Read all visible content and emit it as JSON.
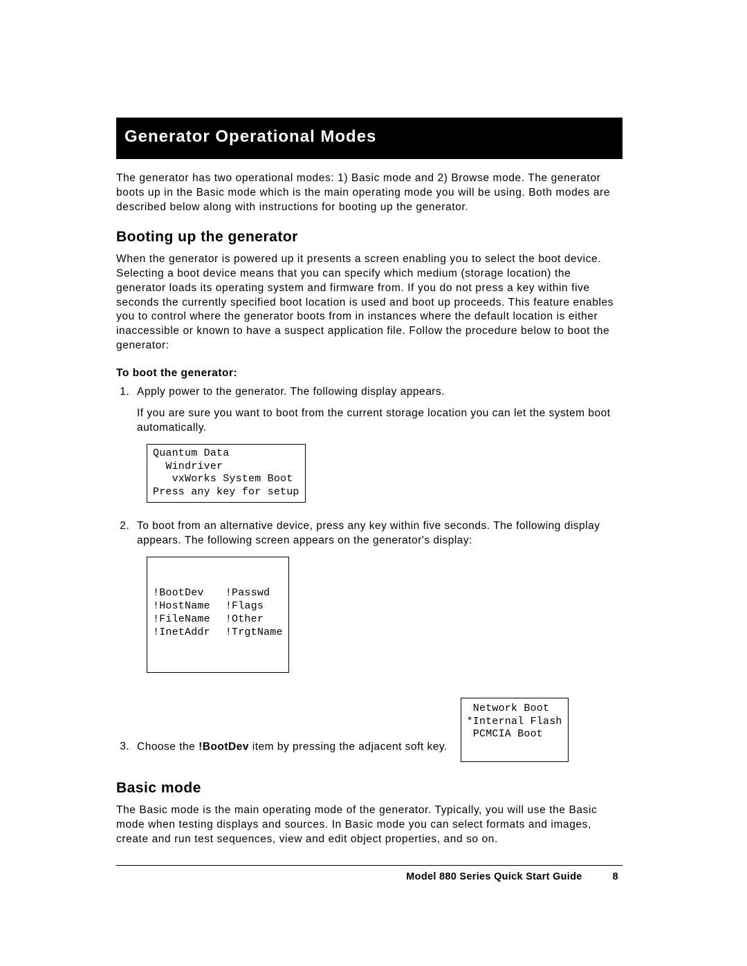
{
  "title": "Generator Operational Modes",
  "intro": "The generator has two operational modes: 1) Basic mode and 2) Browse mode. The generator boots up in the Basic mode which is the main operating mode you will be using. Both modes are described below along with instructions for booting up the generator.",
  "section_boot": {
    "heading": "Booting up the generator",
    "para": "When the generator is powered up it presents a screen enabling you to select the boot device. Selecting a boot device means that you can specify which medium (storage location) the generator loads its operating system and firmware from. If you do not press a key within five seconds the currently specified boot location is used and boot up proceeds. This feature enables you to control where the generator boots from in instances where the default location is either inaccessible or known to have a suspect application file. Follow the procedure below to boot the generator:",
    "sub_heading": "To boot the generator:",
    "steps": {
      "s1a": "Apply power to the generator. The following display appears.",
      "s1b": "If you are sure you want to boot from the current storage location you can let the system boot automatically.",
      "screen1": "Quantum Data\n  Windriver\n   vxWorks System Boot\nPress any key for setup",
      "s2": "To boot from an alternative device, press any key within five seconds. The following display appears. The following screen appears on the generator's display:",
      "screen2_left": [
        "!BootDev",
        "!HostName",
        "!FileName",
        "!InetAddr"
      ],
      "screen2_right": [
        "!Passwd",
        "!Flags",
        "!Other",
        "!TrgtName"
      ],
      "s3_pre": "Choose the ",
      "s3_bold": "!BootDev",
      "s3_post": " item by pressing the adjacent soft key.",
      "screen3": " Network Boot\n*Internal Flash\n PCMCIA Boot\n "
    }
  },
  "section_basic": {
    "heading": "Basic mode",
    "para": "The Basic mode is the main operating mode of the generator. Typically, you will use the Basic mode when testing displays and sources. In Basic mode you can select formats and images, create and run test sequences, view and edit object properties, and so on."
  },
  "footer": {
    "doc": "Model 880 Series Quick Start Guide",
    "page": "8"
  },
  "colors": {
    "page_bg": "#ffffff",
    "text": "#000000",
    "title_bg": "#000000",
    "title_fg": "#ffffff",
    "rule": "#000000",
    "box_border": "#000000"
  }
}
